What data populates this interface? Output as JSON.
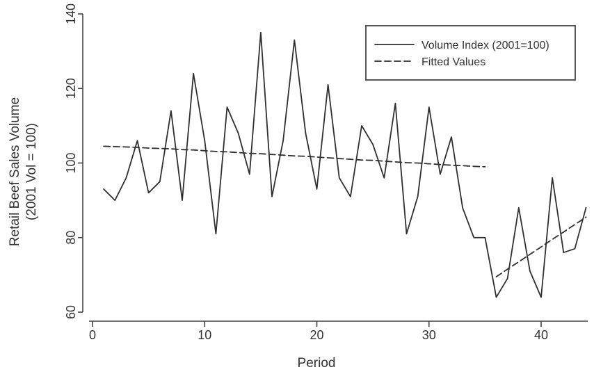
{
  "chart_data": {
    "type": "line",
    "title": "",
    "xlabel": "Period",
    "ylabel_line1": "Retail Beef Sales Volume",
    "ylabel_line2": "(2001 Vol = 100)",
    "xlim": [
      0,
      44
    ],
    "ylim": [
      60,
      140
    ],
    "x_ticks": [
      "0",
      "10",
      "20",
      "30",
      "40"
    ],
    "y_ticks": [
      "60",
      "80",
      "100",
      "120",
      "140"
    ],
    "grid": false,
    "legend": {
      "placement": "top-right",
      "entries": [
        {
          "label": "Volume Index (2001=100)",
          "style": "solid"
        },
        {
          "label": "Fitted Values",
          "style": "dashed"
        }
      ]
    },
    "series": [
      {
        "name": "Volume Index (2001=100)",
        "style": "solid",
        "x": [
          1,
          2,
          3,
          4,
          5,
          6,
          7,
          8,
          9,
          10,
          11,
          12,
          13,
          14,
          15,
          16,
          17,
          18,
          19,
          20,
          21,
          22,
          23,
          24,
          25,
          26,
          27,
          28,
          29,
          30,
          31,
          32,
          33,
          34,
          35,
          36,
          37,
          38,
          39,
          40,
          41,
          42,
          43,
          44
        ],
        "values": [
          93,
          90,
          96,
          106,
          92,
          95,
          114,
          90,
          124,
          106,
          81,
          115,
          108,
          97,
          135,
          91,
          106,
          133,
          108,
          93,
          121,
          96,
          91,
          110,
          105,
          96,
          116,
          81,
          91,
          115,
          97,
          107,
          88,
          80,
          80,
          64,
          69,
          88,
          71,
          64,
          96,
          76,
          77,
          88
        ]
      },
      {
        "name": "Fitted Values",
        "style": "dashed",
        "x": [
          1,
          2,
          3,
          4,
          5,
          6,
          7,
          8,
          9,
          10,
          11,
          12,
          13,
          14,
          15,
          16,
          17,
          18,
          19,
          20,
          21,
          22,
          23,
          24,
          25,
          26,
          27,
          28,
          29,
          30,
          31,
          32,
          33,
          34,
          35,
          36,
          37,
          38,
          39,
          40,
          41,
          42,
          43,
          44
        ],
        "values": [
          104.5,
          104.4,
          104.3,
          104.2,
          104.0,
          103.9,
          103.8,
          103.6,
          103.5,
          103.3,
          103.1,
          103.0,
          102.8,
          102.6,
          102.5,
          102.3,
          102.1,
          101.9,
          101.8,
          101.6,
          101.4,
          101.2,
          101.0,
          100.8,
          100.7,
          100.5,
          100.3,
          100.1,
          100.0,
          99.8,
          99.6,
          99.4,
          99.3,
          99.1,
          99.0,
          69.5,
          71.5,
          73.5,
          75.5,
          77.5,
          79.5,
          81.5,
          83.5,
          85.5
        ]
      }
    ]
  }
}
